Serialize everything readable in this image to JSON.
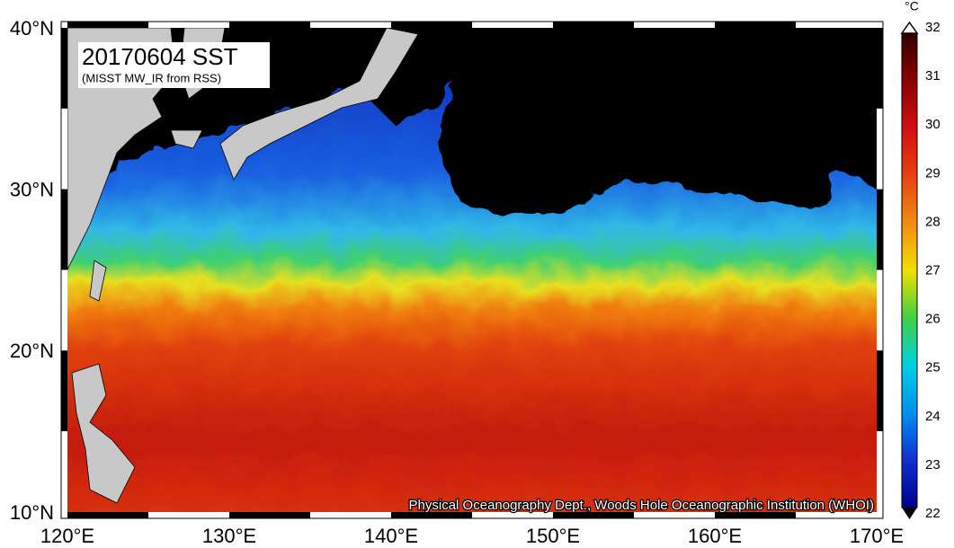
{
  "title": "20170604 SST",
  "subtitle": "(MISST MW_IR from RSS)",
  "credit": "Physical Oceanography Dept., Woods Hole Oceanographic Institution (WHOI)",
  "lat_labels": [
    "40°N",
    "30°N",
    "20°N",
    "10°N"
  ],
  "lon_labels": [
    "120°E",
    "130°E",
    "140°E",
    "150°E",
    "160°E",
    "170°E"
  ],
  "colorbar": {
    "unit": "°C",
    "ticks": [
      32,
      31,
      30,
      29,
      28,
      27,
      26,
      25,
      24,
      23,
      22
    ]
  }
}
